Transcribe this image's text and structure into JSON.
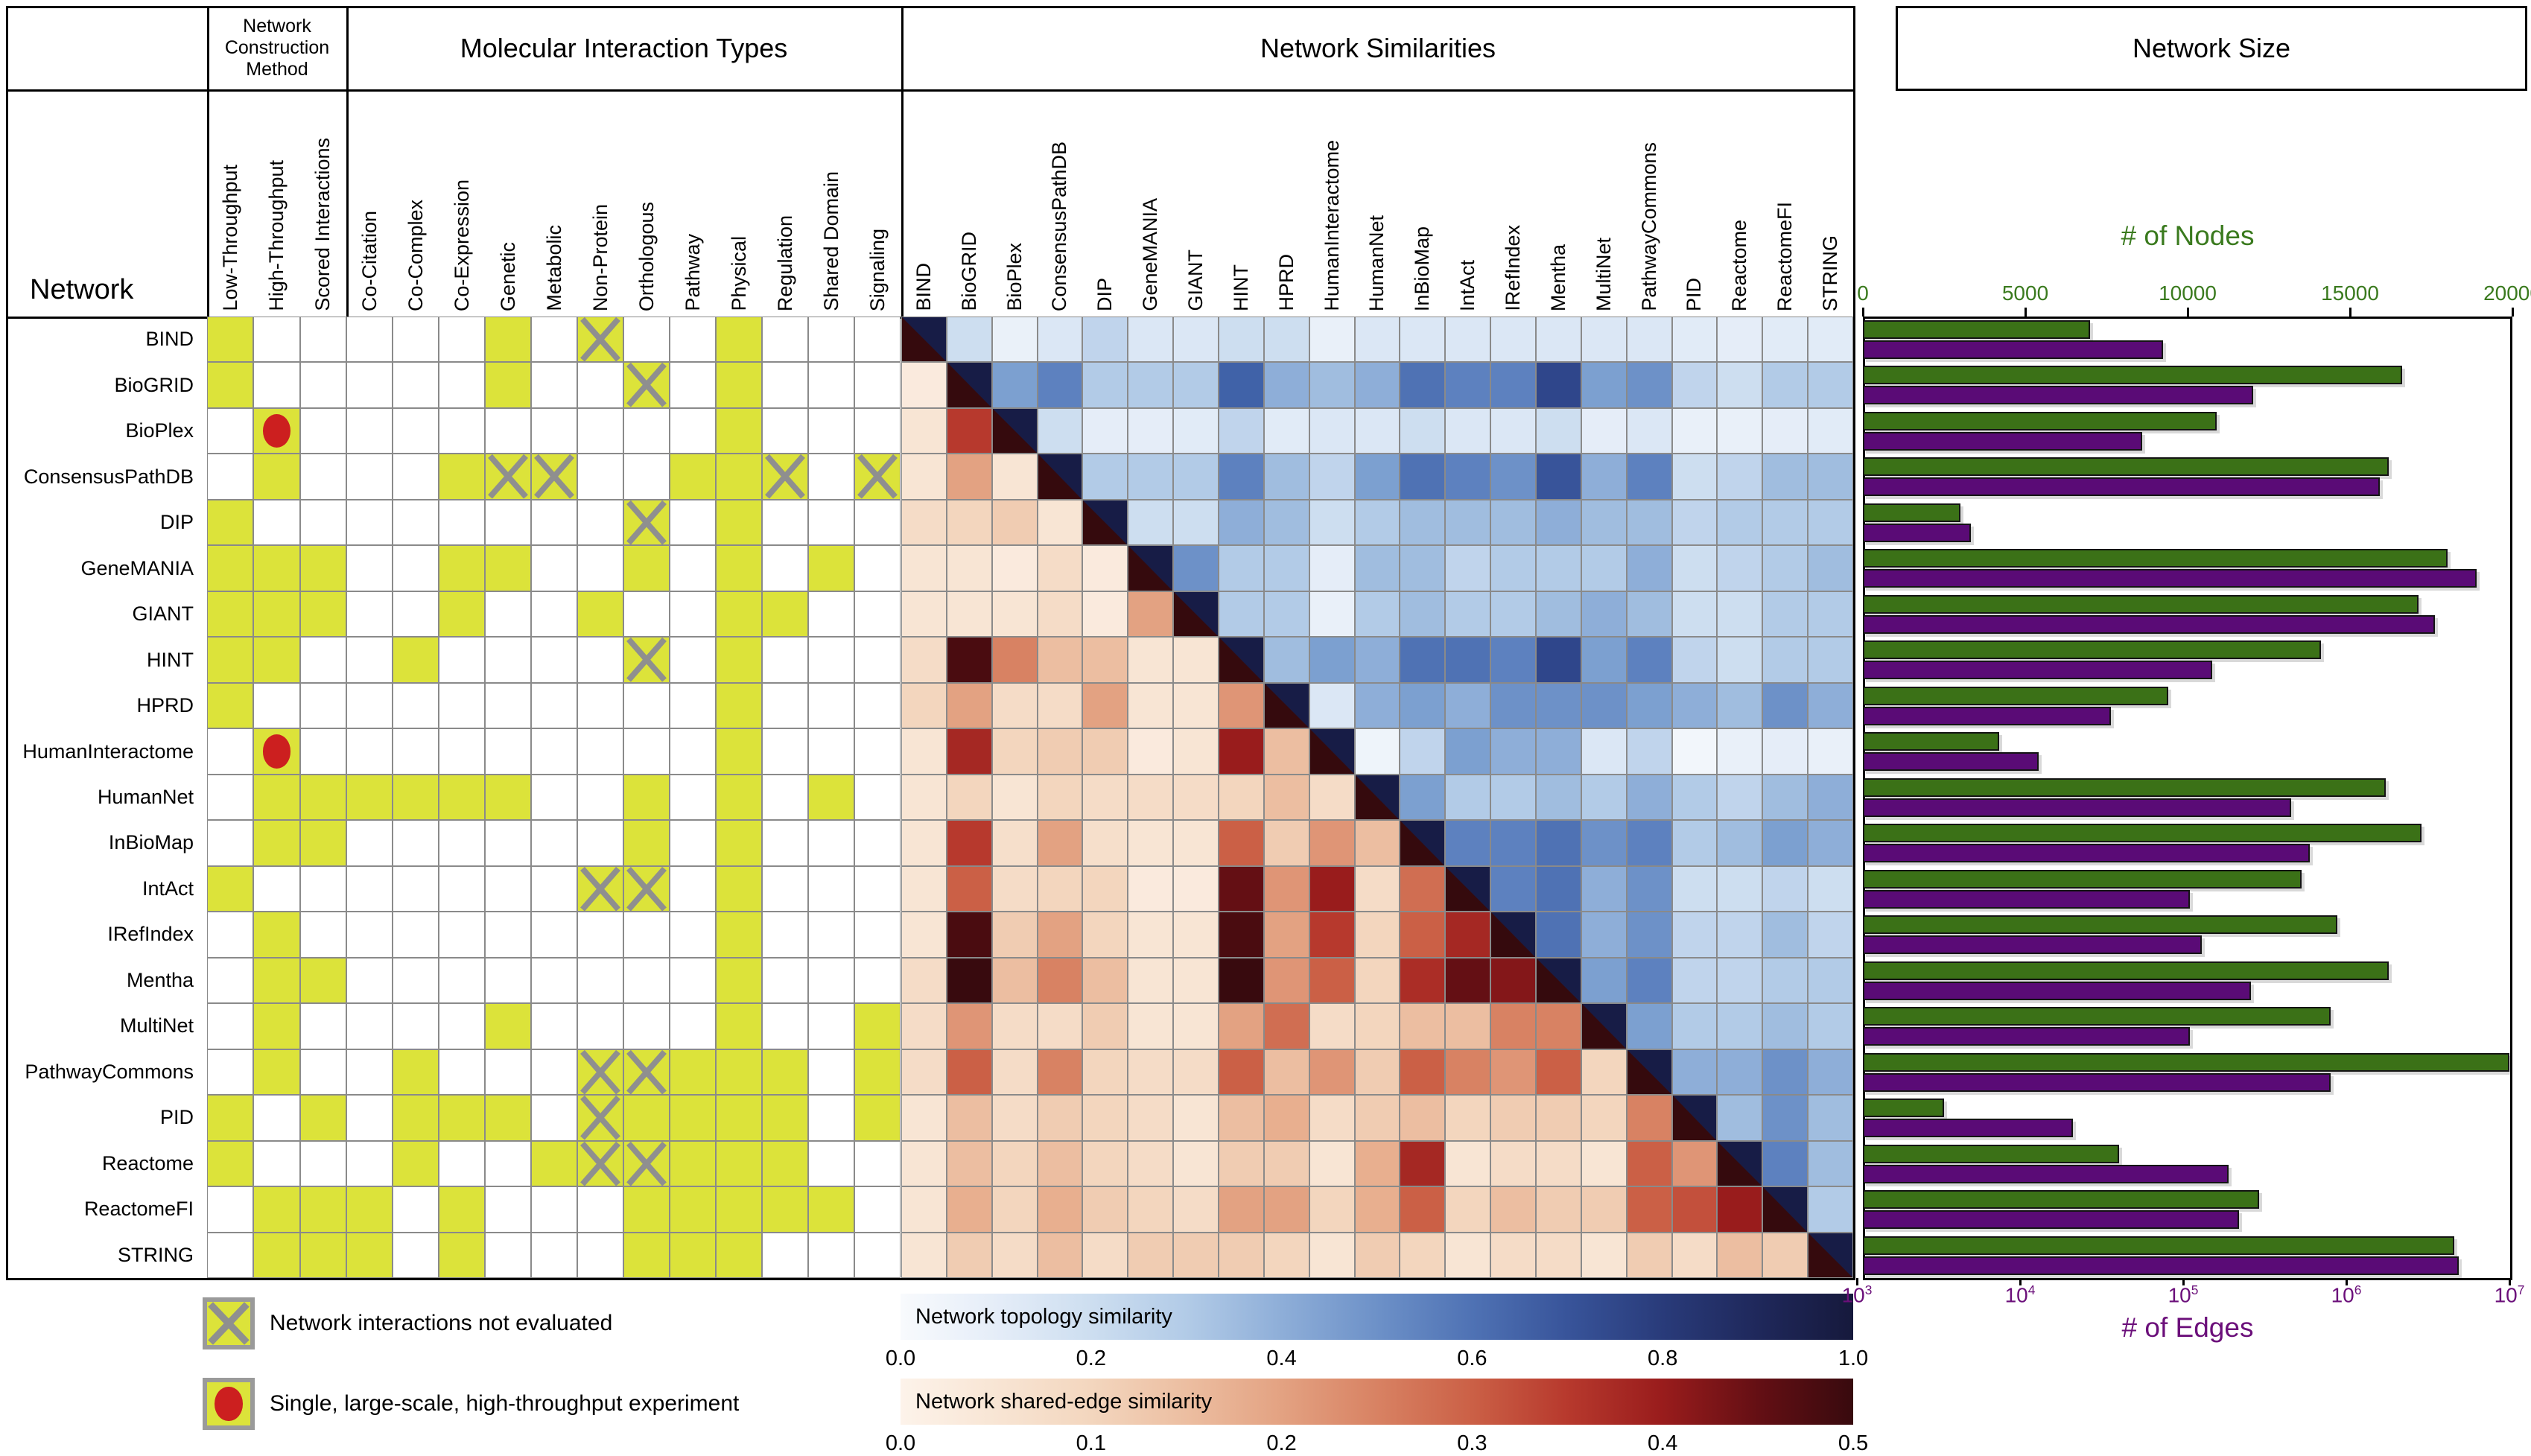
{
  "titles": {
    "network_col": "Network",
    "construction": "Network Construction Method",
    "interaction": "Molecular Interaction Types",
    "similarities": "Network Similarities",
    "size": "Network Size"
  },
  "networks": [
    "BIND",
    "BioGRID",
    "BioPlex",
    "ConsensusPathDB",
    "DIP",
    "GeneMANIA",
    "GIANT",
    "HINT",
    "HPRD",
    "HumanInteractome",
    "HumanNet",
    "InBioMap",
    "IntAct",
    "IRefIndex",
    "Mentha",
    "MultiNet",
    "PathwayCommons",
    "PID",
    "Reactome",
    "ReactomeFI",
    "STRING"
  ],
  "construction_methods": [
    "Low-Throughput",
    "High-Throughput",
    "Scored Interactions"
  ],
  "interaction_types": [
    "Co-Citation",
    "Co-Complex",
    "Co-Expression",
    "Genetic",
    "Metabolic",
    "Non-Protein",
    "Orthologous",
    "Pathway",
    "Physical",
    "Regulation",
    "Shared Domain",
    "Signaling"
  ],
  "attribute_matrix": {
    "cell_codes": {
      "Y": "attribute present",
      "X": "network interactions not evaluated",
      "R": "single large-scale high-throughput experiment",
      "": "absent"
    },
    "columns": [
      "Low-Throughput",
      "High-Throughput",
      "Scored Interactions",
      "Co-Citation",
      "Co-Complex",
      "Co-Expression",
      "Genetic",
      "Metabolic",
      "Non-Protein",
      "Orthologous",
      "Pathway",
      "Physical",
      "Regulation",
      "Shared Domain",
      "Signaling"
    ],
    "rows": [
      [
        "Y",
        "",
        "",
        "",
        "",
        "",
        "Y",
        "",
        "X",
        "",
        "",
        "Y",
        "",
        "",
        ""
      ],
      [
        "Y",
        "",
        "",
        "",
        "",
        "",
        "Y",
        "",
        "",
        "X",
        "",
        "Y",
        "",
        "",
        ""
      ],
      [
        "",
        "R",
        "",
        "",
        "",
        "",
        "",
        "",
        "",
        "",
        "",
        "Y",
        "",
        "",
        ""
      ],
      [
        "",
        "Y",
        "",
        "",
        "",
        "Y",
        "X",
        "X",
        "",
        "",
        "Y",
        "Y",
        "X",
        "",
        "X"
      ],
      [
        "Y",
        "",
        "",
        "",
        "",
        "",
        "",
        "",
        "",
        "X",
        "",
        "Y",
        "",
        "",
        ""
      ],
      [
        "Y",
        "Y",
        "Y",
        "",
        "",
        "Y",
        "Y",
        "",
        "",
        "Y",
        "",
        "Y",
        "",
        "Y",
        ""
      ],
      [
        "Y",
        "Y",
        "Y",
        "",
        "",
        "Y",
        "",
        "",
        "Y",
        "",
        "",
        "Y",
        "Y",
        "",
        ""
      ],
      [
        "Y",
        "Y",
        "",
        "",
        "Y",
        "",
        "",
        "",
        "",
        "X",
        "",
        "Y",
        "",
        "",
        ""
      ],
      [
        "Y",
        "",
        "",
        "",
        "",
        "",
        "",
        "",
        "",
        "",
        "",
        "Y",
        "",
        "",
        ""
      ],
      [
        "",
        "R",
        "",
        "",
        "",
        "",
        "",
        "",
        "",
        "",
        "",
        "Y",
        "",
        "",
        ""
      ],
      [
        "",
        "Y",
        "Y",
        "Y",
        "Y",
        "Y",
        "Y",
        "",
        "",
        "Y",
        "",
        "Y",
        "",
        "Y",
        ""
      ],
      [
        "",
        "Y",
        "Y",
        "",
        "",
        "",
        "",
        "",
        "",
        "Y",
        "",
        "Y",
        "",
        "",
        ""
      ],
      [
        "Y",
        "",
        "",
        "",
        "",
        "",
        "",
        "",
        "X",
        "X",
        "",
        "Y",
        "",
        "",
        ""
      ],
      [
        "",
        "Y",
        "",
        "",
        "",
        "",
        "",
        "",
        "",
        "",
        "",
        "Y",
        "",
        "",
        ""
      ],
      [
        "",
        "Y",
        "Y",
        "",
        "",
        "",
        "",
        "",
        "",
        "",
        "",
        "Y",
        "",
        "",
        ""
      ],
      [
        "",
        "Y",
        "",
        "",
        "",
        "",
        "Y",
        "",
        "",
        "",
        "",
        "Y",
        "",
        "",
        "Y"
      ],
      [
        "",
        "Y",
        "",
        "",
        "Y",
        "",
        "",
        "",
        "X",
        "X",
        "Y",
        "Y",
        "Y",
        "",
        "Y"
      ],
      [
        "Y",
        "",
        "Y",
        "",
        "Y",
        "Y",
        "Y",
        "",
        "X",
        "Y",
        "Y",
        "Y",
        "Y",
        "",
        "Y"
      ],
      [
        "Y",
        "",
        "",
        "",
        "Y",
        "",
        "",
        "Y",
        "X",
        "X",
        "Y",
        "Y",
        "Y",
        "",
        ""
      ],
      [
        "",
        "Y",
        "Y",
        "Y",
        "",
        "Y",
        "",
        "",
        "",
        "Y",
        "Y",
        "Y",
        "Y",
        "Y",
        ""
      ],
      [
        "",
        "Y",
        "Y",
        "Y",
        "",
        "Y",
        "",
        "",
        "",
        "Y",
        "Y",
        "Y",
        "",
        "",
        ""
      ]
    ]
  },
  "chart_data": [
    {
      "type": "heatmap",
      "title": "Network Similarities",
      "rows": [
        "BIND",
        "BioGRID",
        "BioPlex",
        "ConsensusPathDB",
        "DIP",
        "GeneMANIA",
        "GIANT",
        "HINT",
        "HPRD",
        "HumanInteractome",
        "HumanNet",
        "InBioMap",
        "IntAct",
        "IRefIndex",
        "Mentha",
        "MultiNet",
        "PathwayCommons",
        "PID",
        "Reactome",
        "ReactomeFI",
        "STRING"
      ],
      "cols": [
        "BIND",
        "BioGRID",
        "BioPlex",
        "ConsensusPathDB",
        "DIP",
        "GeneMANIA",
        "GIANT",
        "HINT",
        "HPRD",
        "HumanInteractome",
        "HumanNet",
        "InBioMap",
        "IntAct",
        "IRefIndex",
        "Mentha",
        "MultiNet",
        "PathwayCommons",
        "PID",
        "Reactome",
        "ReactomeFI",
        "STRING"
      ],
      "upper_triangle_metric": "Network topology similarity",
      "upper_range": [
        0.0,
        1.0
      ],
      "lower_triangle_metric": "Network shared-edge similarity",
      "lower_range": [
        0.0,
        0.5
      ],
      "note": "values[i][j]: j>i topology similarity (blue), j<i shared-edge similarity (red), diagonal null",
      "values": [
        [
          null,
          0.2,
          0.07,
          0.15,
          0.25,
          0.15,
          0.15,
          0.2,
          0.2,
          0.08,
          0.15,
          0.15,
          0.15,
          0.15,
          0.15,
          0.15,
          0.15,
          0.12,
          0.1,
          0.12,
          0.12
        ],
        [
          0.03,
          null,
          0.45,
          0.55,
          0.3,
          0.3,
          0.3,
          0.65,
          0.4,
          0.35,
          0.4,
          0.6,
          0.55,
          0.55,
          0.75,
          0.45,
          0.5,
          0.25,
          0.2,
          0.3,
          0.3
        ],
        [
          0.05,
          0.35,
          null,
          0.2,
          0.1,
          0.1,
          0.12,
          0.25,
          0.12,
          0.15,
          0.15,
          0.2,
          0.15,
          0.15,
          0.2,
          0.1,
          0.15,
          0.08,
          0.08,
          0.1,
          0.12
        ],
        [
          0.05,
          0.2,
          0.05,
          null,
          0.3,
          0.3,
          0.3,
          0.55,
          0.35,
          0.25,
          0.45,
          0.6,
          0.55,
          0.5,
          0.7,
          0.4,
          0.55,
          0.2,
          0.25,
          0.35,
          0.35
        ],
        [
          0.08,
          0.1,
          0.12,
          0.05,
          null,
          0.2,
          0.2,
          0.4,
          0.35,
          0.2,
          0.3,
          0.35,
          0.35,
          0.35,
          0.4,
          0.35,
          0.35,
          0.25,
          0.3,
          0.3,
          0.3
        ],
        [
          0.05,
          0.05,
          0.03,
          0.08,
          0.03,
          null,
          0.5,
          0.3,
          0.3,
          0.1,
          0.35,
          0.35,
          0.25,
          0.3,
          0.3,
          0.3,
          0.4,
          0.2,
          0.25,
          0.3,
          0.35
        ],
        [
          0.05,
          0.05,
          0.05,
          0.08,
          0.03,
          0.2,
          null,
          0.3,
          0.3,
          0.08,
          0.3,
          0.35,
          0.3,
          0.3,
          0.35,
          0.4,
          0.35,
          0.2,
          0.2,
          0.3,
          0.3
        ],
        [
          0.08,
          0.48,
          0.25,
          0.15,
          0.15,
          0.05,
          0.05,
          null,
          0.35,
          0.45,
          0.4,
          0.6,
          0.6,
          0.55,
          0.75,
          0.45,
          0.55,
          0.25,
          0.2,
          0.3,
          0.3
        ],
        [
          0.1,
          0.2,
          0.08,
          0.08,
          0.2,
          0.05,
          0.05,
          0.22,
          null,
          0.15,
          0.4,
          0.45,
          0.4,
          0.5,
          0.5,
          0.5,
          0.45,
          0.4,
          0.35,
          0.5,
          0.4
        ],
        [
          0.05,
          0.38,
          0.1,
          0.12,
          0.12,
          0.03,
          0.05,
          0.4,
          0.15,
          null,
          0.05,
          0.25,
          0.45,
          0.4,
          0.4,
          0.15,
          0.25,
          0.03,
          0.08,
          0.1,
          0.08
        ],
        [
          0.05,
          0.1,
          0.05,
          0.1,
          0.08,
          0.08,
          0.08,
          0.1,
          0.15,
          0.08,
          null,
          0.45,
          0.3,
          0.3,
          0.35,
          0.3,
          0.4,
          0.3,
          0.25,
          0.35,
          0.4
        ],
        [
          0.05,
          0.35,
          0.07,
          0.2,
          0.07,
          0.05,
          0.05,
          0.3,
          0.12,
          0.22,
          0.15,
          null,
          0.55,
          0.55,
          0.6,
          0.5,
          0.55,
          0.3,
          0.35,
          0.45,
          0.4
        ],
        [
          0.05,
          0.3,
          0.08,
          0.1,
          0.1,
          0.03,
          0.03,
          0.45,
          0.22,
          0.4,
          0.08,
          0.28,
          null,
          0.55,
          0.6,
          0.4,
          0.5,
          0.2,
          0.2,
          0.25,
          0.2
        ],
        [
          0.05,
          0.48,
          0.12,
          0.2,
          0.1,
          0.05,
          0.05,
          0.48,
          0.2,
          0.35,
          0.1,
          0.3,
          0.38,
          null,
          0.6,
          0.4,
          0.5,
          0.25,
          0.25,
          0.35,
          0.25
        ],
        [
          0.08,
          0.5,
          0.15,
          0.25,
          0.15,
          0.05,
          0.05,
          0.5,
          0.22,
          0.3,
          0.1,
          0.37,
          0.45,
          0.42,
          null,
          0.45,
          0.55,
          0.25,
          0.25,
          0.3,
          0.3
        ],
        [
          0.08,
          0.22,
          0.08,
          0.08,
          0.12,
          0.05,
          0.05,
          0.2,
          0.28,
          0.08,
          0.1,
          0.15,
          0.15,
          0.25,
          0.25,
          null,
          0.45,
          0.3,
          0.3,
          0.35,
          0.3
        ],
        [
          0.08,
          0.3,
          0.08,
          0.25,
          0.1,
          0.08,
          0.08,
          0.3,
          0.15,
          0.22,
          0.12,
          0.3,
          0.25,
          0.22,
          0.3,
          0.1,
          null,
          0.4,
          0.4,
          0.5,
          0.4
        ],
        [
          0.05,
          0.15,
          0.08,
          0.12,
          0.1,
          0.08,
          0.05,
          0.15,
          0.18,
          0.08,
          0.12,
          0.15,
          0.1,
          0.12,
          0.12,
          0.1,
          0.25,
          null,
          0.35,
          0.5,
          0.35
        ],
        [
          0.05,
          0.15,
          0.1,
          0.15,
          0.1,
          0.08,
          0.05,
          0.12,
          0.12,
          0.05,
          0.18,
          0.38,
          0.05,
          0.08,
          0.08,
          0.05,
          0.3,
          0.22,
          null,
          0.55,
          0.35
        ],
        [
          0.05,
          0.18,
          0.1,
          0.18,
          0.12,
          0.1,
          0.08,
          0.2,
          0.2,
          0.1,
          0.18,
          0.3,
          0.1,
          0.15,
          0.12,
          0.12,
          0.3,
          0.32,
          0.4,
          null,
          0.3
        ],
        [
          0.05,
          0.12,
          0.08,
          0.15,
          0.08,
          0.12,
          0.12,
          0.12,
          0.1,
          0.05,
          0.12,
          0.1,
          0.05,
          0.08,
          0.08,
          0.05,
          0.12,
          0.08,
          0.15,
          0.12,
          null
        ]
      ]
    },
    {
      "type": "bar",
      "title": "Network Size",
      "orientation": "horizontal",
      "categories": [
        "BIND",
        "BioGRID",
        "BioPlex",
        "ConsensusPathDB",
        "DIP",
        "GeneMANIA",
        "GIANT",
        "HINT",
        "HPRD",
        "HumanInteractome",
        "HumanNet",
        "InBioMap",
        "IntAct",
        "IRefIndex",
        "Mentha",
        "MultiNet",
        "PathwayCommons",
        "PID",
        "Reactome",
        "ReactomeFI",
        "STRING"
      ],
      "series": [
        {
          "name": "# of Nodes",
          "color": "#3b7117",
          "scale": "linear",
          "axis_range": [
            0,
            20000
          ],
          "ticks": [
            "0",
            "5000",
            "10000",
            "15000",
            "20000"
          ],
          "values": [
            7000,
            16600,
            10900,
            16200,
            3000,
            18000,
            17100,
            14100,
            9400,
            4200,
            16100,
            17200,
            13500,
            14600,
            16200,
            14400,
            19900,
            2500,
            7900,
            12200,
            18200
          ]
        },
        {
          "name": "# of Edges",
          "color": "#5a0b76",
          "scale": "log",
          "axis_range": [
            1000,
            10000000
          ],
          "tick_base": "10",
          "tick_exponents": [
            "3",
            "4",
            "5",
            "6",
            "7"
          ],
          "values": [
            75000,
            270000,
            56000,
            1600000,
            5000,
            6300000,
            3500000,
            150000,
            36000,
            13000,
            460000,
            600000,
            110000,
            130000,
            260000,
            110000,
            800000,
            21000,
            190000,
            220000,
            4900000
          ]
        }
      ]
    }
  ],
  "legend": {
    "not_evaluated": "Network interactions not evaluated",
    "single_experiment": "Single, large-scale, high-throughput experiment"
  },
  "colorbars": [
    {
      "label": "Network topology similarity",
      "ticks": [
        "0.0",
        "0.2",
        "0.4",
        "0.6",
        "0.8",
        "1.0"
      ]
    },
    {
      "label": "Network shared-edge similarity",
      "ticks": [
        "0.0",
        "0.1",
        "0.2",
        "0.3",
        "0.4",
        "0.5"
      ]
    }
  ],
  "colors": {
    "attribute_yellow": "#dce33a",
    "grid_grey": "#8a8a8a",
    "x_mark_grey": "#8f8f8f",
    "circle_red": "#cc1f1f",
    "bar_green": "#3b7117",
    "bar_purple": "#5a0b76",
    "axis_green_text": "#3a7a1e",
    "axis_purple_text": "#6b0f7a",
    "diag_navy": "#171c46",
    "diag_maroon": "#350a0d"
  }
}
